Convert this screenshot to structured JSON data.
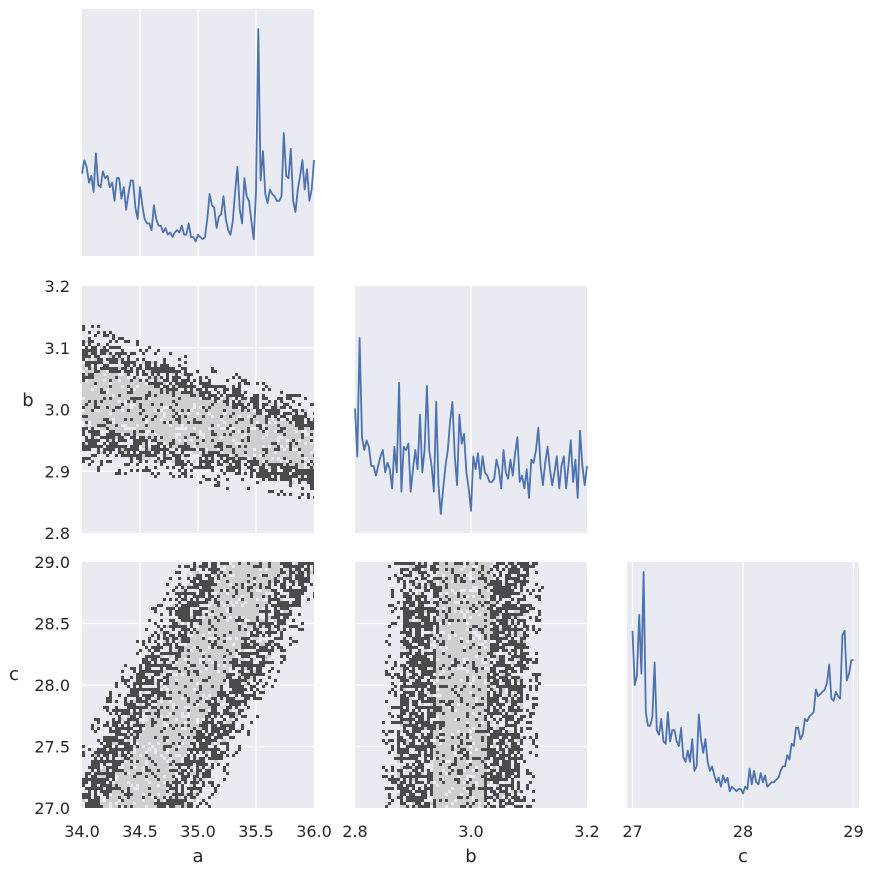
{
  "chart_data": [
    {
      "type": "line",
      "panel": "a-marginal",
      "grid": true,
      "xlim": [
        34.0,
        36.0
      ],
      "x": [
        34.0,
        34.02,
        34.04,
        34.06,
        34.08,
        34.1,
        34.12,
        34.14,
        34.16,
        34.18,
        34.2,
        34.22,
        34.24,
        34.26,
        34.28,
        34.3,
        34.32,
        34.34,
        34.36,
        34.38,
        34.4,
        34.42,
        34.44,
        34.46,
        34.48,
        34.5,
        34.52,
        34.54,
        34.56,
        34.58,
        34.6,
        34.62,
        34.64,
        34.66,
        34.68,
        34.7,
        34.72,
        34.74,
        34.76,
        34.78,
        34.8,
        34.82,
        34.84,
        34.86,
        34.88,
        34.9,
        34.92,
        34.94,
        34.96,
        34.98,
        35.0,
        35.02,
        35.04,
        35.06,
        35.08,
        35.1,
        35.12,
        35.14,
        35.16,
        35.18,
        35.2,
        35.22,
        35.24,
        35.26,
        35.28,
        35.3,
        35.32,
        35.34,
        35.36,
        35.38,
        35.4,
        35.42,
        35.44,
        35.46,
        35.48,
        35.5,
        35.52,
        35.54,
        35.56,
        35.58,
        35.6,
        35.62,
        35.64,
        35.66,
        35.68,
        35.7,
        35.72,
        35.74,
        35.76,
        35.78,
        35.8,
        35.82,
        35.84,
        35.86,
        35.88,
        35.9,
        35.92,
        35.94,
        35.96,
        35.98,
        36.0
      ],
      "y": [
        0.32,
        0.38,
        0.35,
        0.28,
        0.31,
        0.24,
        0.41,
        0.27,
        0.26,
        0.33,
        0.3,
        0.31,
        0.26,
        0.28,
        0.2,
        0.3,
        0.3,
        0.21,
        0.26,
        0.16,
        0.23,
        0.29,
        0.29,
        0.17,
        0.12,
        0.26,
        0.18,
        0.12,
        0.1,
        0.1,
        0.07,
        0.18,
        0.12,
        0.09,
        0.09,
        0.06,
        0.08,
        0.05,
        0.06,
        0.04,
        0.06,
        0.07,
        0.06,
        0.09,
        0.05,
        0.05,
        0.1,
        0.04,
        0.04,
        0.02,
        0.05,
        0.04,
        0.03,
        0.04,
        0.12,
        0.23,
        0.18,
        0.17,
        0.08,
        0.13,
        0.14,
        0.22,
        0.12,
        0.07,
        0.05,
        0.11,
        0.24,
        0.35,
        0.16,
        0.1,
        0.3,
        0.22,
        0.2,
        0.11,
        0.03,
        0.24,
        0.96,
        0.29,
        0.42,
        0.23,
        0.19,
        0.25,
        0.23,
        0.22,
        0.2,
        0.2,
        0.22,
        0.5,
        0.31,
        0.3,
        0.43,
        0.2,
        0.15,
        0.25,
        0.31,
        0.38,
        0.25,
        0.34,
        0.2,
        0.25,
        0.38
      ],
      "ylim": [
        0,
        1
      ],
      "color": "#4c72b0"
    },
    {
      "type": "heatmap",
      "panel": "a-vs-b",
      "grid": true,
      "xlim": [
        34.0,
        36.0
      ],
      "ylim": [
        2.8,
        3.2
      ],
      "xticks": [
        "34.0",
        "34.5",
        "35.0",
        "35.5",
        "36.0"
      ],
      "yticks": [
        "3.2",
        "3.1",
        "3.0",
        "2.9",
        "2.8"
      ],
      "ylabel": "b",
      "levels": [
        "#4b4b4b",
        "#cfcfcf"
      ]
    },
    {
      "type": "line",
      "panel": "b-marginal",
      "grid": true,
      "xlim": [
        2.8,
        3.2
      ],
      "x": [
        2.8,
        2.804,
        2.808,
        2.812,
        2.816,
        2.82,
        2.824,
        2.828,
        2.832,
        2.836,
        2.84,
        2.844,
        2.848,
        2.852,
        2.856,
        2.86,
        2.864,
        2.868,
        2.872,
        2.876,
        2.88,
        2.884,
        2.888,
        2.892,
        2.896,
        2.9,
        2.904,
        2.908,
        2.912,
        2.916,
        2.92,
        2.924,
        2.928,
        2.932,
        2.936,
        2.94,
        2.944,
        2.948,
        2.952,
        2.956,
        2.96,
        2.964,
        2.968,
        2.972,
        2.976,
        2.98,
        2.984,
        2.988,
        2.992,
        2.996,
        3.0,
        3.004,
        3.008,
        3.012,
        3.016,
        3.02,
        3.024,
        3.028,
        3.032,
        3.036,
        3.04,
        3.044,
        3.048,
        3.052,
        3.056,
        3.06,
        3.064,
        3.068,
        3.072,
        3.076,
        3.08,
        3.084,
        3.088,
        3.092,
        3.096,
        3.1,
        3.104,
        3.108,
        3.112,
        3.116,
        3.12,
        3.124,
        3.128,
        3.132,
        3.136,
        3.14,
        3.144,
        3.148,
        3.152,
        3.156,
        3.16,
        3.164,
        3.168,
        3.172,
        3.176,
        3.18,
        3.184,
        3.188,
        3.192,
        3.196,
        3.2
      ],
      "y": [
        0.38,
        0.23,
        0.6,
        0.29,
        0.25,
        0.28,
        0.26,
        0.2,
        0.2,
        0.17,
        0.2,
        0.23,
        0.25,
        0.18,
        0.21,
        0.19,
        0.13,
        0.26,
        0.18,
        0.46,
        0.12,
        0.26,
        0.25,
        0.27,
        0.12,
        0.19,
        0.25,
        0.19,
        0.36,
        0.18,
        0.25,
        0.45,
        0.25,
        0.2,
        0.12,
        0.4,
        0.14,
        0.05,
        0.13,
        0.2,
        0.25,
        0.34,
        0.4,
        0.23,
        0.14,
        0.36,
        0.27,
        0.3,
        0.18,
        0.13,
        0.06,
        0.23,
        0.19,
        0.24,
        0.16,
        0.23,
        0.18,
        0.17,
        0.15,
        0.15,
        0.16,
        0.22,
        0.19,
        0.13,
        0.25,
        0.18,
        0.16,
        0.22,
        0.17,
        0.24,
        0.29,
        0.15,
        0.17,
        0.13,
        0.19,
        0.1,
        0.22,
        0.21,
        0.25,
        0.32,
        0.2,
        0.14,
        0.21,
        0.26,
        0.19,
        0.14,
        0.18,
        0.23,
        0.13,
        0.2,
        0.23,
        0.13,
        0.2,
        0.28,
        0.15,
        0.22,
        0.1,
        0.31,
        0.2,
        0.14,
        0.2
      ],
      "ylim": [
        0,
        1
      ],
      "color": "#4c72b0"
    },
    {
      "type": "heatmap",
      "panel": "a-vs-c",
      "grid": true,
      "xlim": [
        34.0,
        36.0
      ],
      "ylim": [
        27.0,
        29.0
      ],
      "xticks": [
        "34.0",
        "34.5",
        "35.0",
        "35.5",
        "36.0"
      ],
      "yticks": [
        "29.0",
        "28.5",
        "28.0",
        "27.5",
        "27.0"
      ],
      "xlabel": "a",
      "ylabel": "c",
      "levels": [
        "#4b4b4b",
        "#cfcfcf"
      ]
    },
    {
      "type": "heatmap",
      "panel": "b-vs-c",
      "grid": true,
      "xlim": [
        2.8,
        3.2
      ],
      "ylim": [
        27.0,
        29.0
      ],
      "xticks": [
        "2.8",
        "3.0",
        "3.2"
      ],
      "xlabel": "b",
      "levels": [
        "#4b4b4b",
        "#cfcfcf"
      ]
    },
    {
      "type": "line",
      "panel": "c-marginal",
      "grid": true,
      "xlim": [
        26.95,
        29.05
      ],
      "xticks": [
        "27",
        "28",
        "29"
      ],
      "xlabel": "c",
      "x": [
        27.0,
        27.02,
        27.04,
        27.06,
        27.08,
        27.1,
        27.12,
        27.14,
        27.16,
        27.18,
        27.2,
        27.22,
        27.24,
        27.26,
        27.28,
        27.3,
        27.32,
        27.34,
        27.36,
        27.38,
        27.4,
        27.42,
        27.44,
        27.46,
        27.48,
        27.5,
        27.52,
        27.54,
        27.56,
        27.58,
        27.6,
        27.62,
        27.64,
        27.66,
        27.68,
        27.7,
        27.72,
        27.74,
        27.76,
        27.78,
        27.8,
        27.82,
        27.84,
        27.86,
        27.88,
        27.9,
        27.92,
        27.94,
        27.96,
        27.98,
        28.0,
        28.02,
        28.04,
        28.06,
        28.08,
        28.1,
        28.12,
        28.14,
        28.16,
        28.18,
        28.2,
        28.22,
        28.24,
        28.26,
        28.28,
        28.3,
        28.32,
        28.34,
        28.36,
        28.38,
        28.4,
        28.42,
        28.44,
        28.46,
        28.48,
        28.5,
        28.52,
        28.54,
        28.56,
        28.58,
        28.6,
        28.62,
        28.64,
        28.66,
        28.68,
        28.7,
        28.72,
        28.74,
        28.76,
        28.78,
        28.8,
        28.82,
        28.84,
        28.86,
        28.88,
        28.9,
        28.92,
        28.94,
        28.96,
        28.98,
        29.0
      ],
      "y": [
        0.74,
        0.5,
        0.54,
        0.81,
        0.55,
        1.0,
        0.38,
        0.32,
        0.32,
        0.36,
        0.6,
        0.3,
        0.28,
        0.35,
        0.25,
        0.24,
        0.38,
        0.25,
        0.3,
        0.3,
        0.25,
        0.23,
        0.31,
        0.18,
        0.16,
        0.21,
        0.16,
        0.26,
        0.12,
        0.14,
        0.37,
        0.26,
        0.2,
        0.26,
        0.16,
        0.12,
        0.14,
        0.1,
        0.07,
        0.09,
        0.05,
        0.1,
        0.07,
        0.09,
        0.03,
        0.05,
        0.04,
        0.03,
        0.04,
        0.04,
        0.02,
        0.05,
        0.04,
        0.13,
        0.06,
        0.12,
        0.07,
        0.06,
        0.11,
        0.07,
        0.1,
        0.05,
        0.06,
        0.07,
        0.07,
        0.08,
        0.09,
        0.12,
        0.14,
        0.14,
        0.19,
        0.17,
        0.24,
        0.23,
        0.31,
        0.31,
        0.26,
        0.28,
        0.35,
        0.34,
        0.36,
        0.37,
        0.38,
        0.48,
        0.45,
        0.46,
        0.47,
        0.48,
        0.51,
        0.59,
        0.44,
        0.43,
        0.47,
        0.45,
        0.44,
        0.72,
        0.74,
        0.52,
        0.55,
        0.61,
        0.61
      ],
      "ylim": [
        0,
        1
      ],
      "color": "#4c72b0"
    }
  ]
}
